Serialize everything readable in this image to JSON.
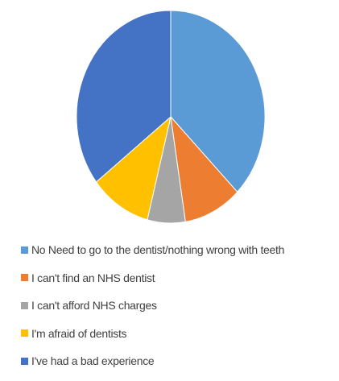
{
  "chart_data": {
    "type": "pie",
    "title": "",
    "start_angle_deg": 0,
    "direction": "clockwise",
    "slices": [
      {
        "label": "No Need to go to the dentist/nothing wrong with teeth",
        "value": 37.5,
        "color": "#5B9BD5"
      },
      {
        "label": "I can't find an NHS dentist",
        "value": 10,
        "color": "#ED7D31"
      },
      {
        "label": "I can't afford NHS charges",
        "value": 6.5,
        "color": "#A5A5A5"
      },
      {
        "label": "I'm afraid of dentists",
        "value": 10.5,
        "color": "#FFC000"
      },
      {
        "label": "I've had a bad experience",
        "value": 35.5,
        "color": "#4472C4"
      }
    ],
    "legend_position": "bottom"
  }
}
